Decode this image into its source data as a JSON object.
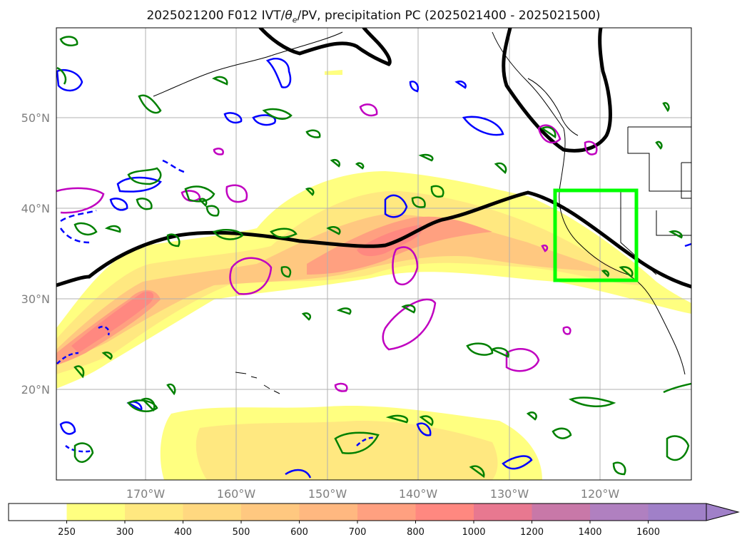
{
  "title": {
    "prefix": "2025021200 F012 IVT/",
    "theta": "θ",
    "theta_sub": "e",
    "suffix": "/PV, precipitation PC (2025021400 - 2025021500)"
  },
  "map": {
    "lat_labels": [
      "50°N",
      "40°N",
      "30°N",
      "20°N"
    ],
    "lat_values": [
      50,
      40,
      30,
      20
    ],
    "lon_labels": [
      "170°W",
      "160°W",
      "150°W",
      "140°W",
      "130°W",
      "120°W"
    ],
    "lon_values": [
      -170,
      -160,
      -150,
      -140,
      -130,
      -120
    ],
    "extent": {
      "lon_min": -180,
      "lon_max": -110,
      "lat_min": 10,
      "lat_max": 60
    },
    "region_box": {
      "lon_min": -125,
      "lon_max": -116,
      "lat_min": 32,
      "lat_max": 42
    },
    "colors": {
      "box": "#00ff00",
      "pv_line": "#000000",
      "contour_green": "#008000",
      "contour_blue": "#0000ff",
      "contour_magenta": "#c000c0",
      "coast": "#000000"
    }
  },
  "colorbar": {
    "levels": [
      "250",
      "300",
      "400",
      "500",
      "600",
      "700",
      "800",
      "1000",
      "1200",
      "1400",
      "1600"
    ],
    "colors": [
      "#ffffff",
      "#ffff80",
      "#ffe880",
      "#ffd880",
      "#ffc880",
      "#ffb880",
      "#ffa080",
      "#ff8880",
      "#e87890",
      "#c878a8",
      "#b080c0",
      "#a080c8"
    ],
    "extend": "max"
  }
}
